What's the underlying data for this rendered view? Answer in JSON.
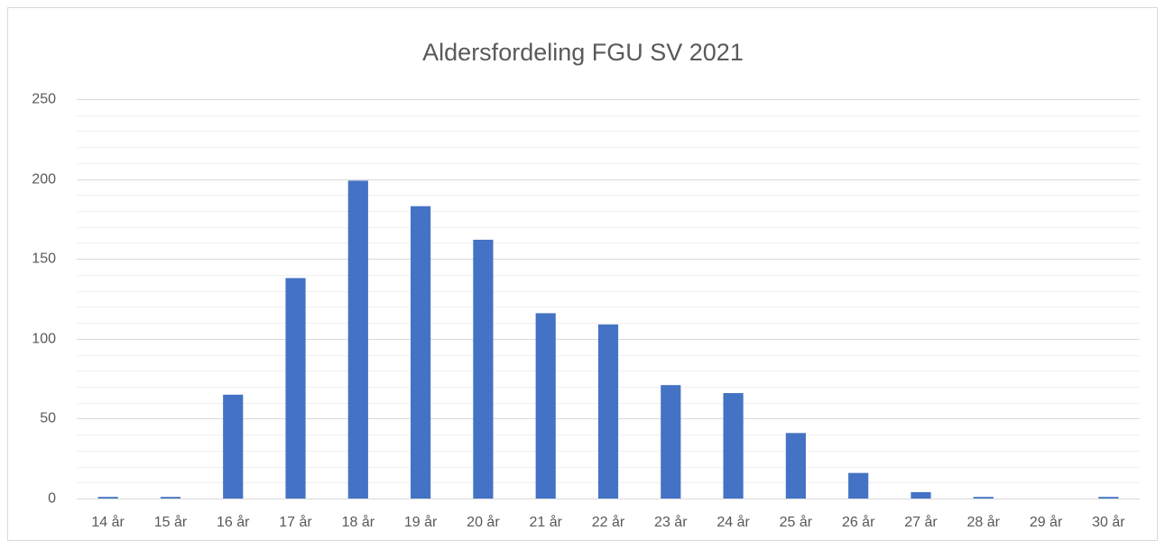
{
  "chart_data": {
    "type": "bar",
    "title": "Aldersfordeling FGU SV 2021",
    "categories": [
      "14 år",
      "15 år",
      "16 år",
      "17 år",
      "18 år",
      "19 år",
      "20 år",
      "21 år",
      "22 år",
      "23 år",
      "24 år",
      "25 år",
      "26 år",
      "27 år",
      "28 år",
      "29 år",
      "30 år"
    ],
    "values": [
      1,
      1,
      65,
      138,
      199,
      183,
      162,
      116,
      109,
      71,
      66,
      41,
      16,
      4,
      1,
      0,
      1
    ],
    "color": "#4472c4",
    "ylim": [
      0,
      250
    ],
    "yticks": [
      0,
      50,
      100,
      150,
      200,
      250
    ],
    "minor_yticks": [
      10,
      20,
      30,
      40,
      60,
      70,
      80,
      90,
      110,
      120,
      130,
      140,
      160,
      170,
      180,
      190,
      210,
      220,
      230,
      240
    ],
    "grid": true
  }
}
